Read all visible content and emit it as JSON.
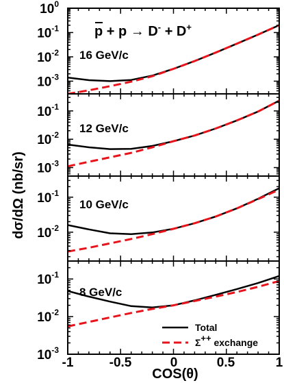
{
  "chart_data": {
    "type": "line",
    "title": {
      "pbar": "p",
      "rest": " + p → D",
      "dminus_sup": "-",
      "plus_d": " + D",
      "dplus_sup": "+"
    },
    "xlabel": "COS(θ)",
    "ylabel": "dσ/dΩ (nb/sr)",
    "x_ticks": [
      "-1",
      "-0.5",
      "0",
      "0.5",
      "1"
    ],
    "xlim": [
      -1,
      1
    ],
    "yscale": "log",
    "legend": {
      "position": "bottom-right",
      "entries": [
        {
          "label": "Total",
          "color": "#000000",
          "dash": "solid"
        },
        {
          "label_base": "Σ",
          "label_sup": "++",
          "label_rest": " exchange",
          "color": "#e8141c",
          "dash": "dashed"
        }
      ]
    },
    "colors": {
      "total": "#000000",
      "sigma_exchange": "#e8141c"
    },
    "panels": [
      {
        "label": "16 GeV/c",
        "ylim": [
          0.0003,
          1
        ],
        "y_ticks": [
          {
            "base": "10",
            "exp": "0",
            "value": 1
          },
          {
            "base": "10",
            "exp": "-1",
            "value": 0.1
          },
          {
            "base": "10",
            "exp": "-2",
            "value": 0.01
          },
          {
            "base": "10",
            "exp": "-3",
            "value": 0.001
          }
        ],
        "series": [
          {
            "name": "Total",
            "x": [
              -1,
              -0.8,
              -0.6,
              -0.4,
              -0.2,
              0,
              0.2,
              0.4,
              0.6,
              0.8,
              1
            ],
            "y": [
              0.0014,
              0.0011,
              0.001,
              0.00112,
              0.0017,
              0.0032,
              0.0067,
              0.015,
              0.035,
              0.082,
              0.2
            ]
          },
          {
            "name": "Σ++ exchange",
            "x": [
              -1,
              -0.8,
              -0.6,
              -0.4,
              -0.2,
              0,
              0.2,
              0.4,
              0.6,
              0.8,
              1
            ],
            "y": [
              0.0003,
              0.00042,
              0.00062,
              0.00095,
              0.0016,
              0.0032,
              0.0067,
              0.015,
              0.035,
              0.082,
              0.2
            ]
          }
        ]
      },
      {
        "label": "12 GeV/c",
        "ylim": [
          0.0005,
          0.4
        ],
        "y_ticks": [
          {
            "base": "10",
            "exp": "-1",
            "value": 0.1
          },
          {
            "base": "10",
            "exp": "-2",
            "value": 0.01
          },
          {
            "base": "10",
            "exp": "-3",
            "value": 0.001
          }
        ],
        "series": [
          {
            "name": "Total",
            "x": [
              -1,
              -0.8,
              -0.6,
              -0.4,
              -0.2,
              0,
              0.2,
              0.4,
              0.6,
              0.8,
              1
            ],
            "y": [
              0.0065,
              0.0052,
              0.0045,
              0.0046,
              0.0058,
              0.0085,
              0.0135,
              0.024,
              0.046,
              0.095,
              0.23
            ]
          },
          {
            "name": "Σ++ exchange",
            "x": [
              -1,
              -0.8,
              -0.6,
              -0.4,
              -0.2,
              0,
              0.2,
              0.4,
              0.6,
              0.8,
              1
            ],
            "y": [
              0.0011,
              0.0016,
              0.0023,
              0.0033,
              0.0052,
              0.0085,
              0.0135,
              0.024,
              0.046,
              0.095,
              0.23
            ]
          }
        ]
      },
      {
        "label": "10 GeV/c",
        "ylim": [
          0.0015,
          0.4
        ],
        "y_ticks": [
          {
            "base": "10",
            "exp": "-1",
            "value": 0.1
          },
          {
            "base": "10",
            "exp": "-2",
            "value": 0.01
          }
        ],
        "series": [
          {
            "name": "Total",
            "x": [
              -1,
              -0.8,
              -0.6,
              -0.4,
              -0.2,
              0,
              0.2,
              0.4,
              0.6,
              0.8,
              1
            ],
            "y": [
              0.016,
              0.012,
              0.0093,
              0.0088,
              0.0098,
              0.0125,
              0.018,
              0.028,
              0.048,
              0.09,
              0.18
            ]
          },
          {
            "name": "Σ++ exchange",
            "x": [
              -1,
              -0.8,
              -0.6,
              -0.4,
              -0.2,
              0,
              0.2,
              0.4,
              0.6,
              0.8,
              1
            ],
            "y": [
              0.0028,
              0.0036,
              0.0048,
              0.0064,
              0.0088,
              0.0125,
              0.018,
              0.028,
              0.048,
              0.088,
              0.165
            ]
          }
        ]
      },
      {
        "label": "8 GeV/c",
        "ylim": [
          0.001,
          0.3
        ],
        "y_ticks": [
          {
            "base": "10",
            "exp": "-1",
            "value": 0.1
          },
          {
            "base": "10",
            "exp": "-2",
            "value": 0.01
          },
          {
            "base": "10",
            "exp": "-3",
            "value": 0.001
          }
        ],
        "series": [
          {
            "name": "Total",
            "x": [
              -1,
              -0.8,
              -0.6,
              -0.4,
              -0.2,
              0,
              0.2,
              0.4,
              0.6,
              0.8,
              1
            ],
            "y": [
              0.048,
              0.034,
              0.025,
              0.019,
              0.0175,
              0.02,
              0.027,
              0.038,
              0.054,
              0.078,
              0.12
            ]
          },
          {
            "name": "Σ++ exchange",
            "x": [
              -1,
              -0.8,
              -0.6,
              -0.4,
              -0.2,
              0,
              0.2,
              0.4,
              0.6,
              0.8,
              1
            ],
            "y": [
              0.0055,
              0.0072,
              0.0095,
              0.0125,
              0.016,
              0.02,
              0.026,
              0.034,
              0.045,
              0.062,
              0.088
            ]
          }
        ]
      }
    ]
  }
}
